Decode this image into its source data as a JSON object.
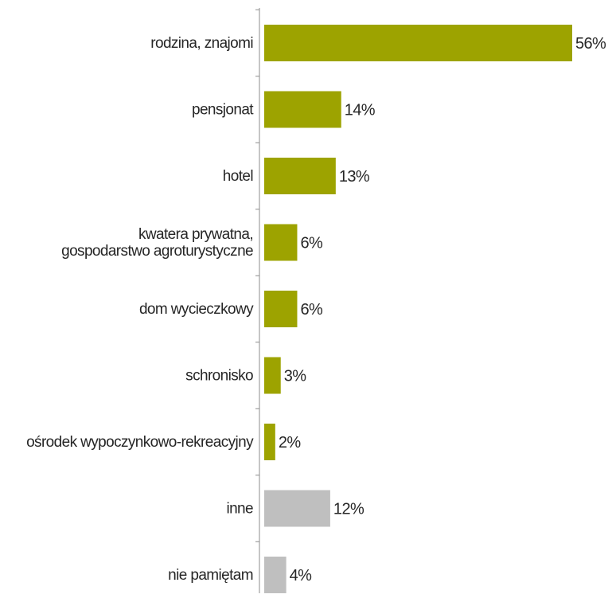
{
  "chart_data": {
    "type": "bar",
    "orientation": "horizontal",
    "title": "",
    "xlabel": "",
    "ylabel": "",
    "categories": [
      "rodzina, znajomi",
      "pensjonat",
      "hotel",
      "kwatera prywatna,\ngospodarstwo agroturystyczne",
      "dom wycieczkowy",
      "schronisko",
      "ośrodek wypoczynkowo-rekreacyjny",
      "inne",
      "nie pamiętam"
    ],
    "values": [
      56,
      14,
      13,
      6,
      6,
      3,
      2,
      12,
      4
    ],
    "value_labels": [
      "56%",
      "14%",
      "13%",
      "6%",
      "6%",
      "3%",
      "2%",
      "12%",
      "4%"
    ],
    "bar_colors": [
      "#9da300",
      "#9da300",
      "#9da300",
      "#9da300",
      "#9da300",
      "#9da300",
      "#9da300",
      "#bfbfbf",
      "#bfbfbf"
    ],
    "xlim": [
      0,
      56
    ],
    "grid": false,
    "legend": "none"
  }
}
